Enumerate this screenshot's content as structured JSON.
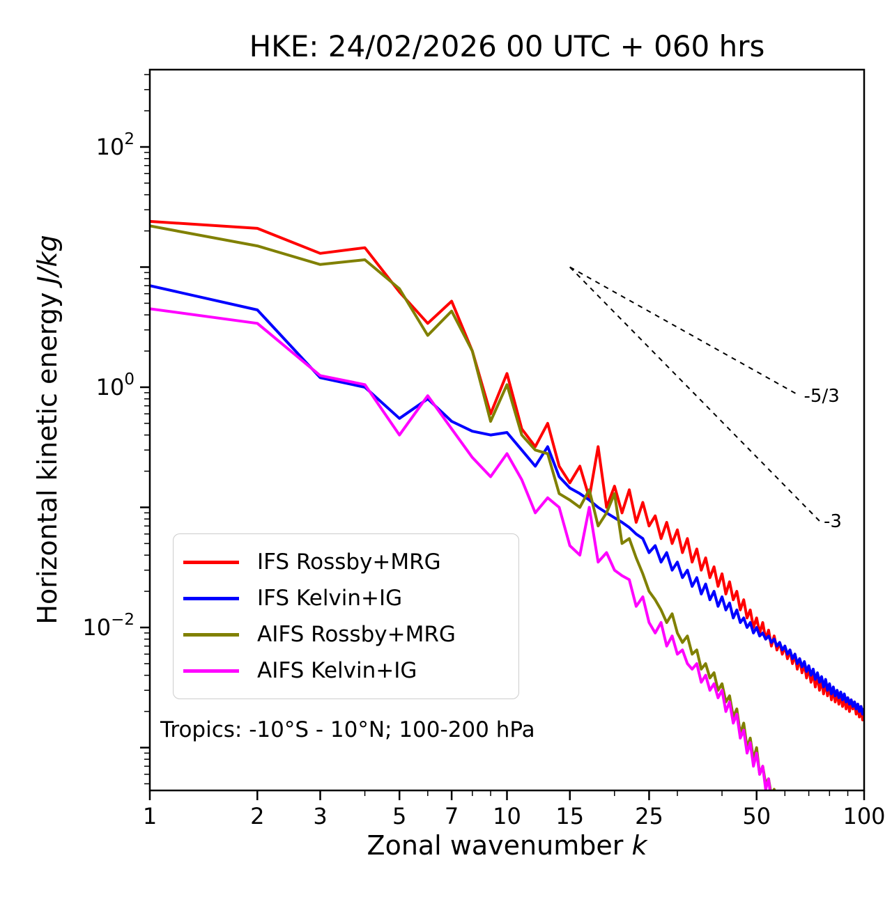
{
  "title": "HKE: 24/02/2026 00 UTC + 060 hrs",
  "annotation": "Tropics: -10°S - 10°N; 100-200 hPa",
  "xlabel": {
    "text": "Zonal wavenumber ",
    "math": "k"
  },
  "ylabel": {
    "text": "Horizontal kinetic energy ",
    "math": "J/kg"
  },
  "chart_data": {
    "type": "line",
    "title": "HKE: 24/02/2026 00 UTC + 060 hrs",
    "xlabel": "Zonal wavenumber k",
    "ylabel": "Horizontal kinetic energy J/kg",
    "x_scale": "log",
    "y_scale": "log",
    "xlim": [
      1,
      100
    ],
    "ylim": [
      0.00044,
      440
    ],
    "grid": false,
    "legend_position": "lower left",
    "x_ticks": [
      {
        "v": 1,
        "label": "1"
      },
      {
        "v": 2,
        "label": "2"
      },
      {
        "v": 3,
        "label": "3"
      },
      {
        "v": 5,
        "label": "5"
      },
      {
        "v": 7,
        "label": "7"
      },
      {
        "v": 10,
        "label": "10"
      },
      {
        "v": 15,
        "label": "15"
      },
      {
        "v": 25,
        "label": "25"
      },
      {
        "v": 50,
        "label": "50"
      },
      {
        "v": 100,
        "label": "100"
      }
    ],
    "x_minor_ticks": [
      4,
      6,
      8,
      9,
      20,
      30,
      40,
      60,
      70,
      80,
      90
    ],
    "y_ticks": [
      {
        "v": 100,
        "base": "10",
        "exp": "2"
      },
      {
        "v": 1,
        "base": "10",
        "exp": "0"
      },
      {
        "v": 0.01,
        "base": "10",
        "exp": "−2"
      }
    ],
    "reference_lines": [
      {
        "label": "-5/3",
        "x": [
          15,
          66
        ],
        "y": [
          10,
          0.85
        ]
      },
      {
        "label": "-3",
        "x": [
          15,
          75
        ],
        "y": [
          10,
          0.077
        ]
      }
    ],
    "series": [
      {
        "name": "IFS Rossby+MRG",
        "color": "#ff0000",
        "x": [
          1,
          2,
          3,
          4,
          5,
          6,
          7,
          8,
          9,
          10,
          11,
          12,
          13,
          14,
          15,
          16,
          17,
          18,
          19,
          20,
          21,
          22,
          23,
          24,
          25,
          26,
          27,
          28,
          29,
          30,
          31,
          32,
          33,
          34,
          35,
          36,
          37,
          38,
          39,
          40,
          41,
          42,
          43,
          44,
          45,
          46,
          47,
          48,
          49,
          50,
          51,
          52,
          53,
          54,
          55,
          56,
          57,
          58,
          59,
          60,
          61,
          62,
          63,
          64,
          65,
          66,
          67,
          68,
          69,
          70,
          71,
          72,
          73,
          74,
          75,
          76,
          77,
          78,
          79,
          80,
          81,
          82,
          83,
          84,
          85,
          86,
          87,
          88,
          89,
          90,
          91,
          92,
          93,
          94,
          95,
          96,
          97,
          98,
          99,
          100
        ],
        "y": [
          24,
          21,
          13,
          14.5,
          6.2,
          3.4,
          5.2,
          2.0,
          0.6,
          1.3,
          0.45,
          0.32,
          0.5,
          0.22,
          0.16,
          0.22,
          0.12,
          0.32,
          0.1,
          0.15,
          0.09,
          0.14,
          0.075,
          0.11,
          0.07,
          0.085,
          0.055,
          0.075,
          0.05,
          0.065,
          0.042,
          0.055,
          0.035,
          0.045,
          0.03,
          0.038,
          0.026,
          0.032,
          0.022,
          0.028,
          0.019,
          0.024,
          0.017,
          0.02,
          0.014,
          0.017,
          0.012,
          0.014,
          0.01,
          0.012,
          0.009,
          0.011,
          0.008,
          0.0095,
          0.007,
          0.0085,
          0.0065,
          0.0075,
          0.006,
          0.007,
          0.0055,
          0.0065,
          0.005,
          0.006,
          0.0045,
          0.0055,
          0.0042,
          0.005,
          0.0038,
          0.0046,
          0.0035,
          0.0042,
          0.0032,
          0.004,
          0.003,
          0.0037,
          0.0028,
          0.0035,
          0.0027,
          0.0033,
          0.0025,
          0.0031,
          0.0024,
          0.0029,
          0.0023,
          0.0028,
          0.0022,
          0.0027,
          0.0021,
          0.0026,
          0.002,
          0.0025,
          0.0021,
          0.0024,
          0.0019,
          0.0023,
          0.0018,
          0.0022,
          0.0017,
          0.0021
        ]
      },
      {
        "name": "IFS Kelvin+IG",
        "color": "#0000ff",
        "x": [
          1,
          2,
          3,
          4,
          5,
          6,
          7,
          8,
          9,
          10,
          11,
          12,
          13,
          14,
          15,
          16,
          17,
          18,
          19,
          20,
          21,
          22,
          23,
          24,
          25,
          26,
          27,
          28,
          29,
          30,
          31,
          32,
          33,
          34,
          35,
          36,
          37,
          38,
          39,
          40,
          41,
          42,
          43,
          44,
          45,
          46,
          47,
          48,
          49,
          50,
          51,
          52,
          53,
          54,
          55,
          56,
          57,
          58,
          59,
          60,
          61,
          62,
          63,
          64,
          65,
          66,
          67,
          68,
          69,
          70,
          71,
          72,
          73,
          74,
          75,
          76,
          77,
          78,
          79,
          80,
          81,
          82,
          83,
          84,
          85,
          86,
          87,
          88,
          89,
          90,
          91,
          92,
          93,
          94,
          95,
          96,
          97,
          98,
          99,
          100
        ],
        "y": [
          7.0,
          4.4,
          1.2,
          1.0,
          0.55,
          0.8,
          0.52,
          0.43,
          0.4,
          0.42,
          0.3,
          0.22,
          0.32,
          0.18,
          0.145,
          0.13,
          0.115,
          0.1,
          0.09,
          0.082,
          0.075,
          0.068,
          0.06,
          0.055,
          0.042,
          0.048,
          0.035,
          0.042,
          0.03,
          0.035,
          0.026,
          0.03,
          0.022,
          0.026,
          0.019,
          0.023,
          0.017,
          0.02,
          0.015,
          0.018,
          0.014,
          0.016,
          0.012,
          0.014,
          0.011,
          0.012,
          0.01,
          0.011,
          0.009,
          0.01,
          0.0085,
          0.009,
          0.008,
          0.0085,
          0.0075,
          0.008,
          0.007,
          0.0075,
          0.0065,
          0.007,
          0.006,
          0.0065,
          0.0055,
          0.006,
          0.005,
          0.0055,
          0.0047,
          0.0052,
          0.0043,
          0.0048,
          0.004,
          0.0045,
          0.0037,
          0.0042,
          0.0035,
          0.0039,
          0.0032,
          0.0037,
          0.003,
          0.0034,
          0.0028,
          0.0032,
          0.0027,
          0.003,
          0.0026,
          0.0029,
          0.0025,
          0.0028,
          0.0024,
          0.0026,
          0.0023,
          0.0025,
          0.0022,
          0.0024,
          0.0021,
          0.0023,
          0.002,
          0.0022,
          0.0019,
          0.0021
        ]
      },
      {
        "name": "AIFS Rossby+MRG",
        "color": "#808000",
        "x": [
          1,
          2,
          3,
          4,
          5,
          6,
          7,
          8,
          9,
          10,
          11,
          12,
          13,
          14,
          15,
          16,
          17,
          18,
          19,
          20,
          21,
          22,
          23,
          24,
          25,
          26,
          27,
          28,
          29,
          30,
          31,
          32,
          33,
          34,
          35,
          36,
          37,
          38,
          39,
          40,
          41,
          42,
          43,
          44,
          45,
          46,
          47,
          48,
          49,
          50,
          51,
          52,
          53,
          54,
          55,
          56,
          57,
          58
        ],
        "y": [
          22,
          15,
          10.5,
          11.5,
          6.6,
          2.7,
          4.3,
          2.0,
          0.52,
          1.05,
          0.4,
          0.3,
          0.28,
          0.13,
          0.115,
          0.1,
          0.14,
          0.07,
          0.09,
          0.13,
          0.05,
          0.055,
          0.038,
          0.028,
          0.02,
          0.017,
          0.014,
          0.011,
          0.013,
          0.009,
          0.0075,
          0.0085,
          0.006,
          0.0065,
          0.0045,
          0.005,
          0.0038,
          0.0042,
          0.003,
          0.0034,
          0.0024,
          0.0027,
          0.0018,
          0.0021,
          0.0013,
          0.0016,
          0.001,
          0.0012,
          0.0008,
          0.001,
          0.0006,
          0.0007,
          0.0005,
          0.00055,
          0.0004,
          0.00045,
          0.0003,
          0.00032
        ]
      },
      {
        "name": "AIFS Kelvin+IG",
        "color": "#ff00ff",
        "x": [
          1,
          2,
          3,
          4,
          5,
          6,
          7,
          8,
          9,
          10,
          11,
          12,
          13,
          14,
          15,
          16,
          17,
          18,
          19,
          20,
          21,
          22,
          23,
          24,
          25,
          26,
          27,
          28,
          29,
          30,
          31,
          32,
          33,
          34,
          35,
          36,
          37,
          38,
          39,
          40,
          41,
          42,
          43,
          44,
          45,
          46,
          47,
          48,
          49,
          50,
          51,
          52,
          53,
          54,
          55,
          56,
          57,
          58
        ],
        "y": [
          4.5,
          3.4,
          1.25,
          1.05,
          0.4,
          0.85,
          0.45,
          0.26,
          0.18,
          0.28,
          0.17,
          0.09,
          0.12,
          0.1,
          0.048,
          0.04,
          0.1,
          0.035,
          0.042,
          0.03,
          0.027,
          0.025,
          0.015,
          0.018,
          0.011,
          0.009,
          0.011,
          0.007,
          0.0085,
          0.006,
          0.0065,
          0.005,
          0.0045,
          0.005,
          0.0035,
          0.004,
          0.003,
          0.0034,
          0.0026,
          0.003,
          0.002,
          0.0024,
          0.0016,
          0.0019,
          0.0012,
          0.0014,
          0.0009,
          0.0011,
          0.0007,
          0.0009,
          0.0006,
          0.0007,
          0.00045,
          0.00055,
          0.00035,
          0.0004,
          0.00028,
          0.0003
        ]
      }
    ]
  }
}
